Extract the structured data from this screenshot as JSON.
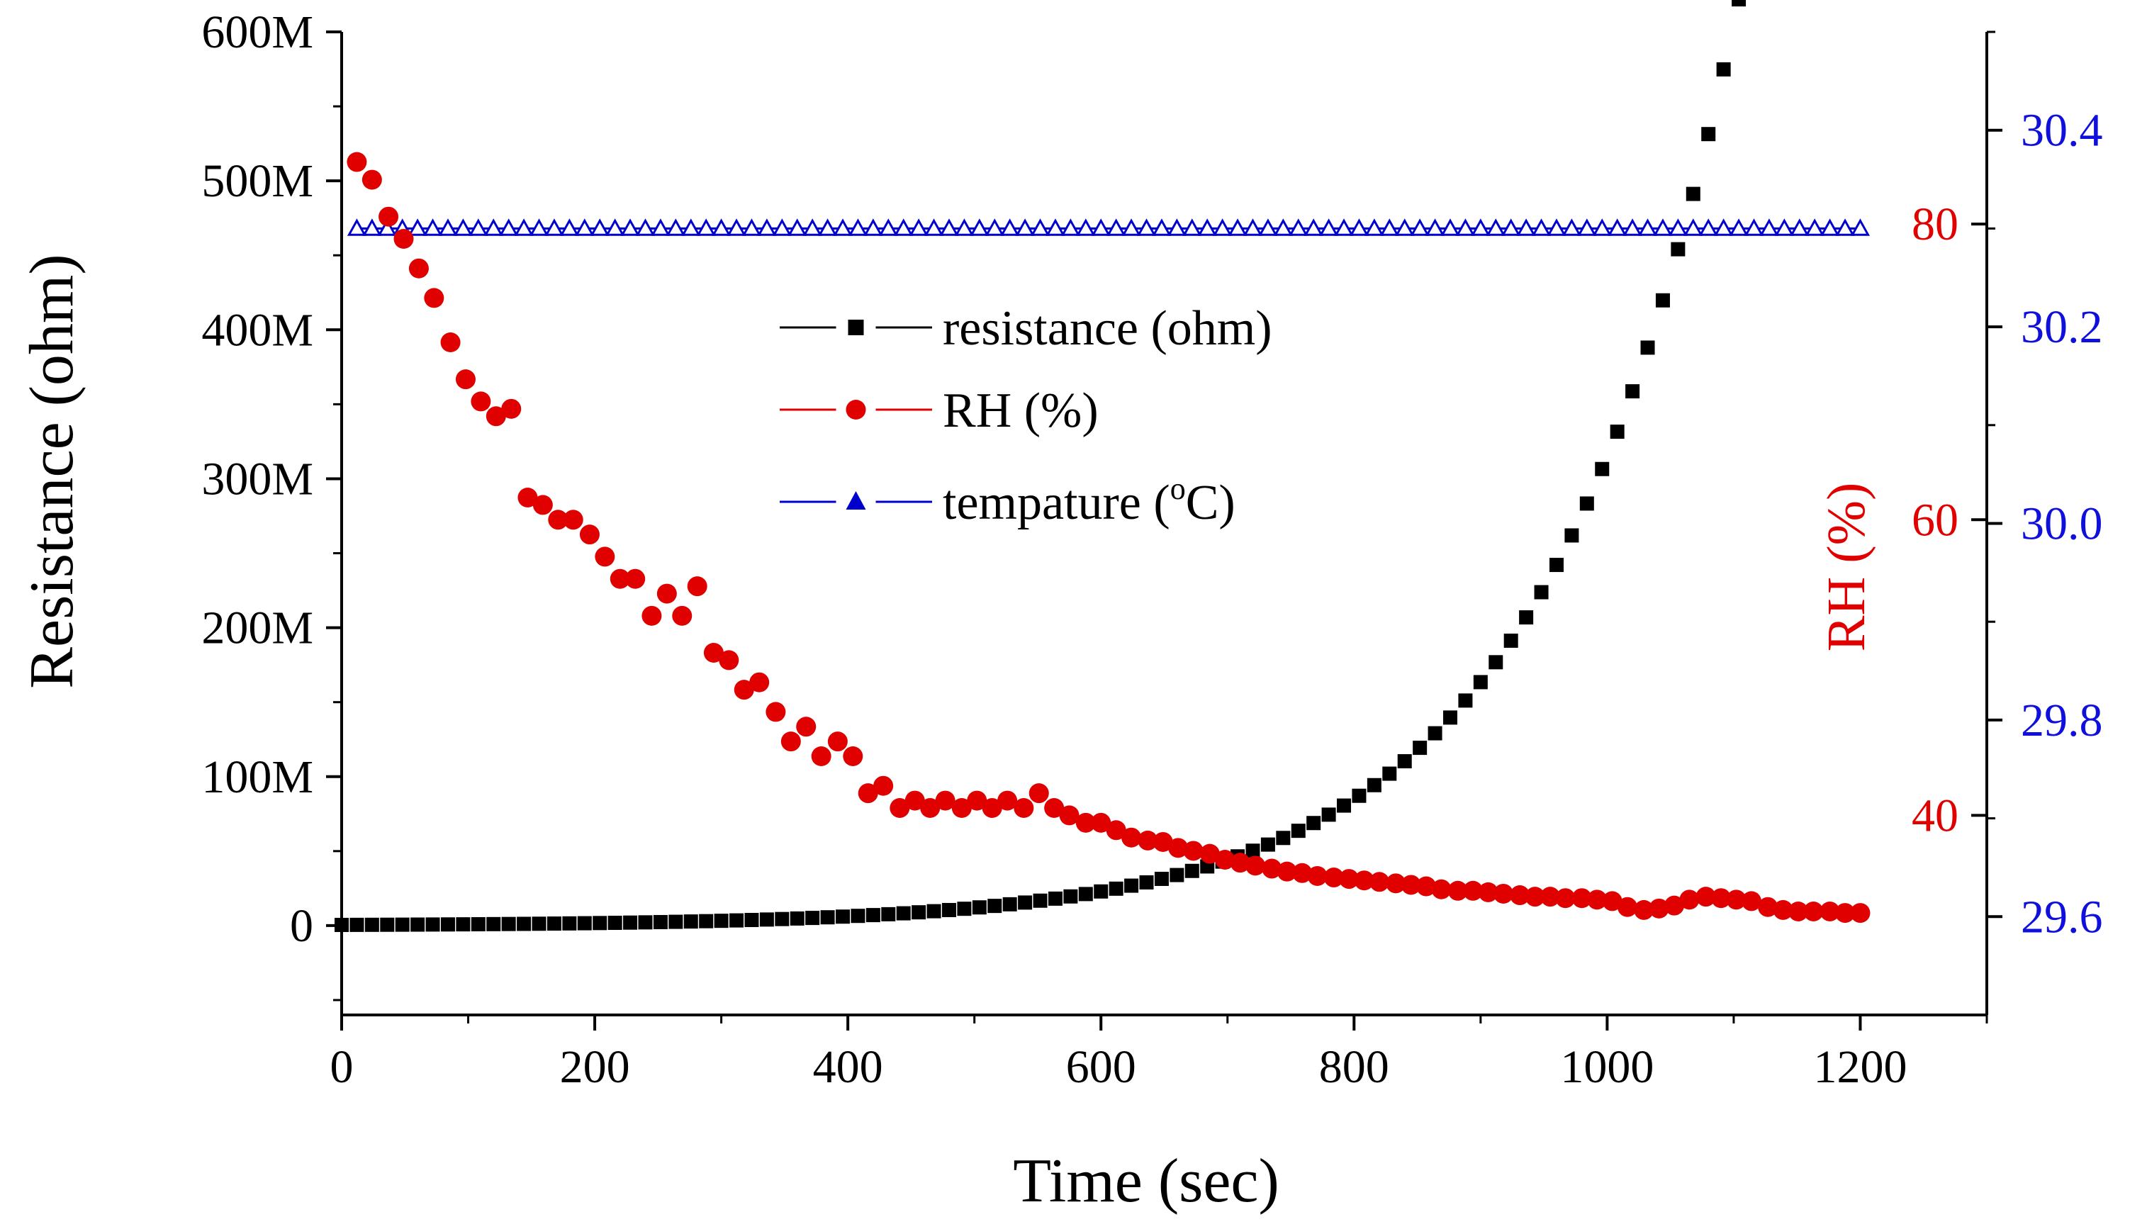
{
  "chart_data": {
    "type": "scatter",
    "xlabel": "Time (sec)",
    "ylabel_left": "Resistance (ohm)",
    "ylabel_right_inner": "RH (%)",
    "x_axis": {
      "min": 0,
      "max": 1300,
      "ticks": [
        0,
        200,
        400,
        600,
        800,
        1000,
        1200
      ]
    },
    "y_left": {
      "min": -60000000,
      "max": 600000000,
      "ticks": [
        0,
        100000000,
        200000000,
        300000000,
        400000000,
        500000000,
        600000000
      ],
      "tick_labels": [
        "0",
        "100M",
        "200M",
        "300M",
        "400M",
        "500M",
        "600M"
      ]
    },
    "y_rh": {
      "min": 26.5,
      "max": 93.0,
      "ticks": [
        40,
        60,
        80
      ],
      "tick_labels": [
        "40",
        "60",
        "80"
      ],
      "color": "#e00000"
    },
    "y_temp": {
      "min": 29.5,
      "max": 30.5,
      "ticks": [
        29.6,
        29.8,
        30.0,
        30.2,
        30.4
      ],
      "tick_labels": [
        "29.6",
        "29.8",
        "30.0",
        "30.2",
        "30.4"
      ],
      "color": "#1010dd"
    },
    "legend": {
      "position": "upper-center",
      "entries": [
        {
          "label": "resistance (ohm)",
          "marker": "square",
          "color": "#000000"
        },
        {
          "label": "RH (%)",
          "marker": "circle",
          "color": "#e00000"
        },
        {
          "label_main": "tempature (",
          "label_sup": "o",
          "label_end": "C)",
          "marker": "triangle",
          "color": "#0000cc"
        }
      ]
    },
    "series": [
      {
        "name": "resistance (ohm)",
        "axis": "left",
        "color": "#000000",
        "marker": "square",
        "x_start": 0,
        "x_step": 12,
        "x_end": 1200,
        "model": {
          "a": 0.45,
          "k": 0.00655,
          "unit": "ohm"
        }
      },
      {
        "name": "RH (%)",
        "axis": "rh",
        "color": "#e00000",
        "marker": "circle",
        "x": [
          12,
          24,
          37,
          49,
          61,
          73,
          86,
          98,
          110,
          122,
          134,
          147,
          159,
          171,
          183,
          196,
          208,
          220,
          232,
          245,
          257,
          269,
          281,
          294,
          306,
          318,
          330,
          343,
          355,
          367,
          379,
          392,
          404,
          416,
          428,
          441,
          453,
          465,
          477,
          490,
          502,
          514,
          526,
          539,
          551,
          563,
          575,
          588,
          600,
          612,
          624,
          637,
          649,
          661,
          673,
          686,
          698,
          710,
          722,
          735,
          747,
          759,
          771,
          784,
          796,
          808,
          820,
          833,
          845,
          857,
          869,
          882,
          894,
          906,
          918,
          931,
          943,
          955,
          967,
          980,
          992,
          1004,
          1016,
          1029,
          1041,
          1053,
          1065,
          1078,
          1090,
          1102,
          1114,
          1127,
          1139,
          1151,
          1163,
          1176,
          1188,
          1200
        ],
        "y": [
          84.2,
          83.0,
          80.5,
          79.0,
          77.0,
          75.0,
          72.0,
          69.5,
          68.0,
          67.0,
          67.5,
          61.5,
          61.0,
          60.0,
          60.0,
          59.0,
          57.5,
          56.0,
          56.0,
          53.5,
          55.0,
          53.5,
          55.5,
          51.0,
          50.5,
          48.5,
          49.0,
          47.0,
          45.0,
          46.0,
          44.0,
          45.0,
          44.0,
          41.5,
          42.0,
          40.5,
          41.0,
          40.5,
          41.0,
          40.5,
          41.0,
          40.5,
          41.0,
          40.5,
          41.5,
          40.5,
          40.0,
          39.5,
          39.5,
          39.0,
          38.5,
          38.3,
          38.2,
          37.8,
          37.6,
          37.4,
          37.0,
          36.8,
          36.6,
          36.4,
          36.2,
          36.1,
          35.9,
          35.8,
          35.7,
          35.6,
          35.5,
          35.4,
          35.3,
          35.2,
          35.0,
          34.9,
          34.9,
          34.8,
          34.7,
          34.6,
          34.5,
          34.5,
          34.4,
          34.4,
          34.3,
          34.2,
          33.8,
          33.6,
          33.7,
          33.9,
          34.3,
          34.5,
          34.4,
          34.3,
          34.2,
          33.8,
          33.6,
          33.5,
          33.5,
          33.5,
          33.4,
          33.4
        ]
      },
      {
        "name": "tempature (oC)",
        "axis": "temp",
        "color": "#0000cc",
        "marker": "triangle",
        "x_start": 12,
        "x_step": 12,
        "x_end": 1200,
        "value": 30.3
      }
    ]
  }
}
